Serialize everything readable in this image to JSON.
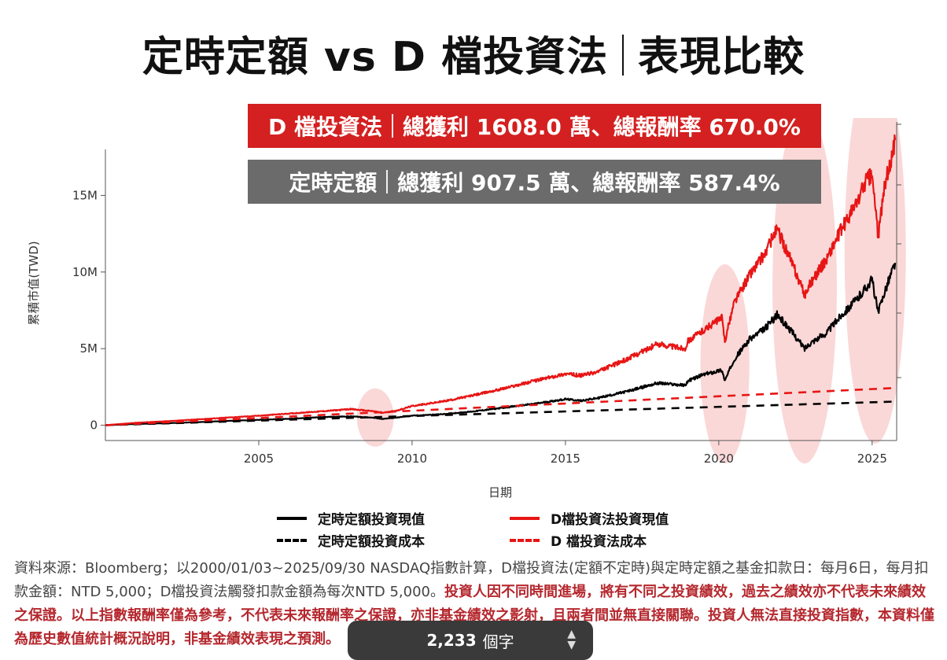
{
  "header": {
    "title_left": "定時定額 vs D  檔投資法",
    "title_right": "表現比較"
  },
  "banners": {
    "d_method": {
      "name": "D 檔投資法",
      "stats": "總獲利 1608.0 萬、總報酬率 670.0%"
    },
    "dca": {
      "name": "定時定額",
      "stats": "總獲利 907.5 萬、總報酬率 587.4%"
    }
  },
  "chart_data": {
    "type": "line",
    "xlabel": "日期",
    "ylabel": "累積市值(TWD)",
    "xlim": [
      2000.0,
      2025.8
    ],
    "ylim": [
      -1000000,
      18000000
    ],
    "x_ticks": [
      2005,
      2010,
      2015,
      2020,
      2025
    ],
    "y_ticks": [
      {
        "value": 0,
        "label": "0"
      },
      {
        "value": 5000000,
        "label": "5M"
      },
      {
        "value": 10000000,
        "label": "10M"
      },
      {
        "value": 15000000,
        "label": "15M"
      }
    ],
    "series": [
      {
        "name": "定時定額投資現值",
        "color": "#000000",
        "dash": false,
        "points": [
          [
            2000.0,
            0
          ],
          [
            2001,
            80000
          ],
          [
            2002,
            130000
          ],
          [
            2003,
            200000
          ],
          [
            2004,
            280000
          ],
          [
            2005,
            350000
          ],
          [
            2006,
            420000
          ],
          [
            2007,
            520000
          ],
          [
            2008,
            580000
          ],
          [
            2008.8,
            480000
          ],
          [
            2009,
            400000
          ],
          [
            2009.5,
            500000
          ],
          [
            2010,
            620000
          ],
          [
            2011,
            720000
          ],
          [
            2012,
            900000
          ],
          [
            2013,
            1150000
          ],
          [
            2014,
            1400000
          ],
          [
            2015,
            1700000
          ],
          [
            2015.5,
            1600000
          ],
          [
            2016,
            1750000
          ],
          [
            2017,
            2200000
          ],
          [
            2018,
            2750000
          ],
          [
            2018.9,
            2600000
          ],
          [
            2019,
            2900000
          ],
          [
            2019.5,
            3300000
          ],
          [
            2020.1,
            3600000
          ],
          [
            2020.2,
            2900000
          ],
          [
            2020.5,
            4300000
          ],
          [
            2021,
            5600000
          ],
          [
            2021.5,
            6300000
          ],
          [
            2021.9,
            7200000
          ],
          [
            2022.3,
            6300000
          ],
          [
            2022.8,
            5000000
          ],
          [
            2023,
            5400000
          ],
          [
            2023.5,
            6000000
          ],
          [
            2024,
            7200000
          ],
          [
            2024.5,
            8200000
          ],
          [
            2024.8,
            9000000
          ],
          [
            2025.0,
            9500000
          ],
          [
            2025.2,
            7300000
          ],
          [
            2025.4,
            8700000
          ],
          [
            2025.75,
            10600000
          ]
        ]
      },
      {
        "name": "定時定額投資成本",
        "color": "#000000",
        "dash": true,
        "points": [
          [
            2000.0,
            0
          ],
          [
            2025.75,
            1540000
          ]
        ]
      },
      {
        "name": "D檔投資法投資現值",
        "color": "#e81515",
        "dash": false,
        "points": [
          [
            2000.0,
            0
          ],
          [
            2001,
            160000
          ],
          [
            2002,
            260000
          ],
          [
            2003,
            380000
          ],
          [
            2004,
            500000
          ],
          [
            2005,
            620000
          ],
          [
            2006,
            760000
          ],
          [
            2007,
            900000
          ],
          [
            2008,
            1050000
          ],
          [
            2008.8,
            900000
          ],
          [
            2009,
            800000
          ],
          [
            2009.5,
            950000
          ],
          [
            2010,
            1250000
          ],
          [
            2011,
            1550000
          ],
          [
            2012,
            1950000
          ],
          [
            2013,
            2400000
          ],
          [
            2014,
            2900000
          ],
          [
            2015,
            3350000
          ],
          [
            2015.5,
            3250000
          ],
          [
            2016,
            3450000
          ],
          [
            2017,
            4300000
          ],
          [
            2018,
            5300000
          ],
          [
            2018.9,
            5000000
          ],
          [
            2019,
            5500000
          ],
          [
            2019.5,
            6200000
          ],
          [
            2020.1,
            7000000
          ],
          [
            2020.2,
            5500000
          ],
          [
            2020.5,
            8000000
          ],
          [
            2021,
            9800000
          ],
          [
            2021.5,
            11200000
          ],
          [
            2021.9,
            12800000
          ],
          [
            2022.3,
            11000000
          ],
          [
            2022.8,
            8500000
          ],
          [
            2023,
            9300000
          ],
          [
            2023.5,
            10800000
          ],
          [
            2024,
            12800000
          ],
          [
            2024.5,
            14500000
          ],
          [
            2024.8,
            16000000
          ],
          [
            2025.0,
            16300000
          ],
          [
            2025.2,
            12300000
          ],
          [
            2025.4,
            15500000
          ],
          [
            2025.75,
            18600000
          ]
        ]
      },
      {
        "name": "D 檔投資法成本",
        "color": "#e81515",
        "dash": true,
        "points": [
          [
            2000.0,
            0
          ],
          [
            2025.75,
            2430000
          ]
        ]
      }
    ],
    "highlights": [
      {
        "x": 2008.8,
        "y": 500000,
        "rx": 0.6,
        "ry": 1900000
      },
      {
        "x": 2020.2,
        "y": 4000000,
        "rx": 0.8,
        "ry": 6500000
      },
      {
        "x": 2022.8,
        "y": 9000000,
        "rx": 1.05,
        "ry": 11500000
      },
      {
        "x": 2025.1,
        "y": 11300000,
        "rx": 1.0,
        "ry": 12500000
      }
    ]
  },
  "legend": [
    {
      "label": "定時定額投資現值",
      "color": "#000000",
      "dash": false
    },
    {
      "label": "D檔投資法投資現值",
      "color": "#e81515",
      "dash": false
    },
    {
      "label": "定時定額投資成本",
      "color": "#000000",
      "dash": true
    },
    {
      "label": "D 檔投資法成本",
      "color": "#e81515",
      "dash": true
    }
  ],
  "footnote": {
    "normal": "資料來源：Bloomberg；以2000/01/03~2025/09/30 NASDAQ指數計算，D檔投資法(定額不定時)與定時定額之基金扣款日：每月6日，每月扣款金額：NTD 5,000；D檔投資法觸發扣款金額為每次NTD 5,000。",
    "warning": "投資人因不同時間進場，將有不同之投資績效，過去之績效亦不代表未來績效之保證。以上指數報酬率僅為參考，不代表未來報酬率之保證，亦非基金績效之影射，且兩者間並無直接關聯。投資人無法直接投資指數，本資料僅為歷史數值統計概況說明，非基金績效表現之預測。"
  },
  "word_count": {
    "number": "2,233",
    "unit": "個字"
  }
}
